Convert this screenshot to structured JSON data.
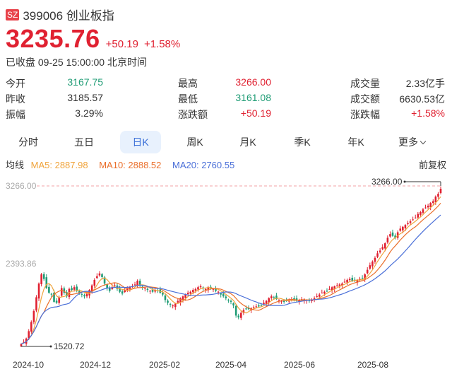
{
  "header": {
    "market_badge": "SZ",
    "code": "399006",
    "name": "创业板指",
    "title": "399006 创业板指"
  },
  "quote": {
    "price": "3235.76",
    "change": "+50.19",
    "change_pct": "+1.58%",
    "status": "已收盘 09-25 15:00:00 北京时间"
  },
  "stats": [
    [
      {
        "label": "今开",
        "value": "3167.75",
        "color": "green"
      },
      {
        "label": "最高",
        "value": "3266.00",
        "color": "red"
      },
      {
        "label": "成交量",
        "value": "2.33亿手",
        "color": ""
      }
    ],
    [
      {
        "label": "昨收",
        "value": "3185.57",
        "color": ""
      },
      {
        "label": "最低",
        "value": "3161.08",
        "color": "green"
      },
      {
        "label": "成交额",
        "value": "6630.53亿",
        "color": ""
      }
    ],
    [
      {
        "label": "振幅",
        "value": "3.29%",
        "color": ""
      },
      {
        "label": "涨跌额",
        "value": "+50.19",
        "color": "red"
      },
      {
        "label": "涨跌幅",
        "value": "+1.58%",
        "color": "red"
      }
    ]
  ],
  "tabs": [
    {
      "label": "分时",
      "active": false
    },
    {
      "label": "五日",
      "active": false
    },
    {
      "label": "日K",
      "active": true
    },
    {
      "label": "周K",
      "active": false
    },
    {
      "label": "月K",
      "active": false
    },
    {
      "label": "季K",
      "active": false
    },
    {
      "label": "年K",
      "active": false
    },
    {
      "label": "更多",
      "active": false
    }
  ],
  "ma": {
    "label": "均线",
    "ma5": "MA5: 2887.98",
    "ma10": "MA10: 2888.52",
    "ma20": "MA20: 2760.55",
    "adjust": "前复权"
  },
  "colors": {
    "up": "#e02131",
    "down": "#1f9c75",
    "ma5": "#f0a43c",
    "ma10": "#ea6f2b",
    "ma20": "#4a6fd8",
    "active_tab_bg": "#e8f1fd"
  },
  "chart_data": {
    "type": "candlestick",
    "title": "399006 创业板指 日K",
    "xlabel": "",
    "ylabel": "",
    "x_ticks": [
      "2024-10",
      "2024-12",
      "2025-02",
      "2025-04",
      "2025-06",
      "2025-08"
    ],
    "y_ticks": [
      "3266.00",
      "2393.86",
      "1520.72"
    ],
    "ylim": [
      1520.72,
      3266.0
    ],
    "max_marker": {
      "value": "3266.00",
      "date_position": "end"
    },
    "min_marker": {
      "value": "1520.72",
      "date_position": "start"
    },
    "grid": false,
    "legend": [
      "MA5: 2887.98",
      "MA10: 2888.52",
      "MA20: 2760.55"
    ],
    "legend_position": "top-left",
    "series": [
      {
        "name": "close",
        "values": [
          1540,
          1560,
          1600,
          1680,
          1780,
          1900,
          2050,
          2200,
          2300,
          2250,
          2150,
          2100,
          2080,
          2000,
          1990,
          2050,
          2150,
          2100,
          2060,
          2140,
          2130,
          2160,
          2120,
          2100,
          2080,
          2060,
          2090,
          2130,
          2180,
          2240,
          2280,
          2310,
          2270,
          2200,
          2150,
          2120,
          2160,
          2180,
          2140,
          2110,
          2090,
          2130,
          2150,
          2160,
          2170,
          2190,
          2230,
          2180,
          2160,
          2150,
          2130,
          2120,
          2110,
          2130,
          2120,
          2100,
          2080,
          2020,
          1990,
          1970,
          1960,
          1980,
          2010,
          2040,
          2060,
          2080,
          2100,
          2110,
          2130,
          2140,
          2160,
          2170,
          2150,
          2140,
          2160,
          2150,
          2140,
          2120,
          2110,
          2080,
          2060,
          2040,
          2020,
          2000,
          1960,
          1850,
          1830,
          1880,
          1910,
          1920,
          1920,
          1930,
          1940,
          1950,
          1950,
          1960,
          1990,
          2010,
          2040,
          2060,
          2050,
          2030,
          2020,
          2010,
          2000,
          2010,
          2020,
          2030,
          2020,
          2010,
          2020,
          2030,
          2030,
          2020,
          2010,
          2020,
          2040,
          2060,
          2080,
          2100,
          2110,
          2120,
          2140,
          2160,
          2170,
          2180,
          2190,
          2200,
          2220,
          2240,
          2250,
          2230,
          2230,
          2240,
          2250,
          2260,
          2300,
          2350,
          2400,
          2440,
          2480,
          2530,
          2560,
          2600,
          2640,
          2700,
          2740,
          2720,
          2700,
          2760,
          2800,
          2820,
          2840,
          2860,
          2880,
          2900,
          2920,
          2960,
          2980,
          3010,
          3030,
          3050,
          3080,
          3100,
          3150,
          3180,
          3235
        ]
      }
    ]
  }
}
